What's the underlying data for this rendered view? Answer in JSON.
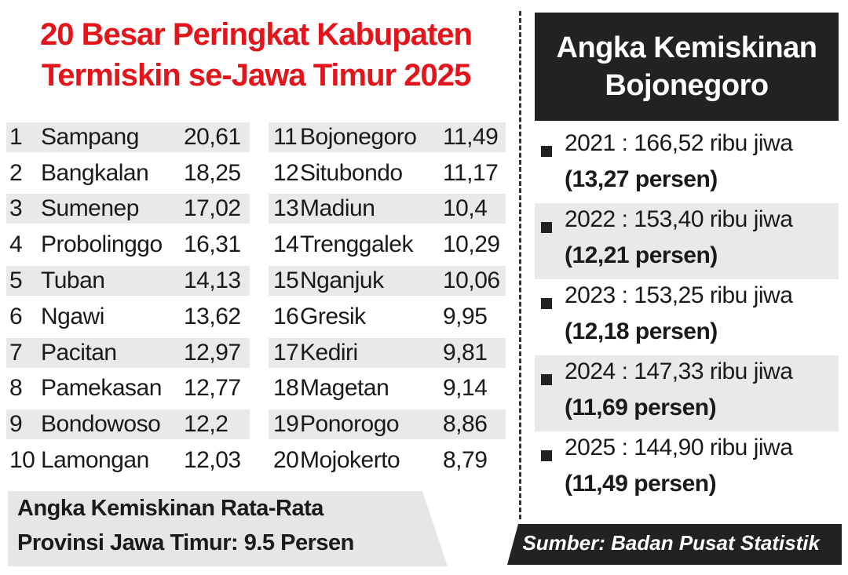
{
  "title": {
    "line1": "20 Besar Peringkat Kabupaten",
    "line2": "Termiskin se-Jawa Timur 2025"
  },
  "rankings_left": [
    {
      "rank": "1",
      "name": "Sampang",
      "value": "20,61"
    },
    {
      "rank": "2",
      "name": "Bangkalan",
      "value": "18,25"
    },
    {
      "rank": "3",
      "name": "Sumenep",
      "value": "17,02"
    },
    {
      "rank": "4",
      "name": "Probolinggo",
      "value": "16,31"
    },
    {
      "rank": "5",
      "name": "Tuban",
      "value": "14,13"
    },
    {
      "rank": "6",
      "name": "Ngawi",
      "value": "13,62"
    },
    {
      "rank": "7",
      "name": "Pacitan",
      "value": "12,97"
    },
    {
      "rank": "8",
      "name": "Pamekasan",
      "value": "12,77"
    },
    {
      "rank": "9",
      "name": "Bondowoso",
      "value": "12,2"
    },
    {
      "rank": "10",
      "name": "Lamongan",
      "value": "12,03"
    }
  ],
  "rankings_right": [
    {
      "rank": "11",
      "name": "Bojonegoro",
      "value": "11,49"
    },
    {
      "rank": "12",
      "name": "Situbondo",
      "value": "11,17"
    },
    {
      "rank": "13",
      "name": "Madiun",
      "value": "10,4"
    },
    {
      "rank": "14",
      "name": "Trenggalek",
      "value": "10,29"
    },
    {
      "rank": "15",
      "name": "Nganjuk",
      "value": "10,06"
    },
    {
      "rank": "16",
      "name": "Gresik",
      "value": "9,95"
    },
    {
      "rank": "17",
      "name": "Kediri",
      "value": "9,81"
    },
    {
      "rank": "18",
      "name": "Magetan",
      "value": "9,14"
    },
    {
      "rank": "19",
      "name": "Ponorogo",
      "value": "8,86"
    },
    {
      "rank": "20",
      "name": "Mojokerto",
      "value": "8,79"
    }
  ],
  "footnote": {
    "line1": "Angka Kemiskinan Rata-Rata",
    "line2": "Provinsi Jawa Timur: 9.5 Persen"
  },
  "right_panel": {
    "title_line1": "Angka Kemiskinan",
    "title_line2": "Bojonegoro",
    "years": [
      {
        "line1": "2021 : 166,52 ribu jiwa",
        "line2": "(13,27 persen)"
      },
      {
        "line1": "2022 : 153,40 ribu jiwa",
        "line2": "(12,21 persen)"
      },
      {
        "line1": "2023 : 153,25 ribu jiwa",
        "line2": "(12,18 persen)"
      },
      {
        "line1": "2024 : 147,33 ribu jiwa",
        "line2": "(11,69 persen)"
      },
      {
        "line1": "2025 : 144,90 ribu jiwa",
        "line2": "(11,49 persen)"
      }
    ]
  },
  "source": "Sumber: Badan Pusat Statistik",
  "colors": {
    "title_red": "#e4141b",
    "dark_bg": "#222222",
    "shade": "#e9e9e9"
  }
}
